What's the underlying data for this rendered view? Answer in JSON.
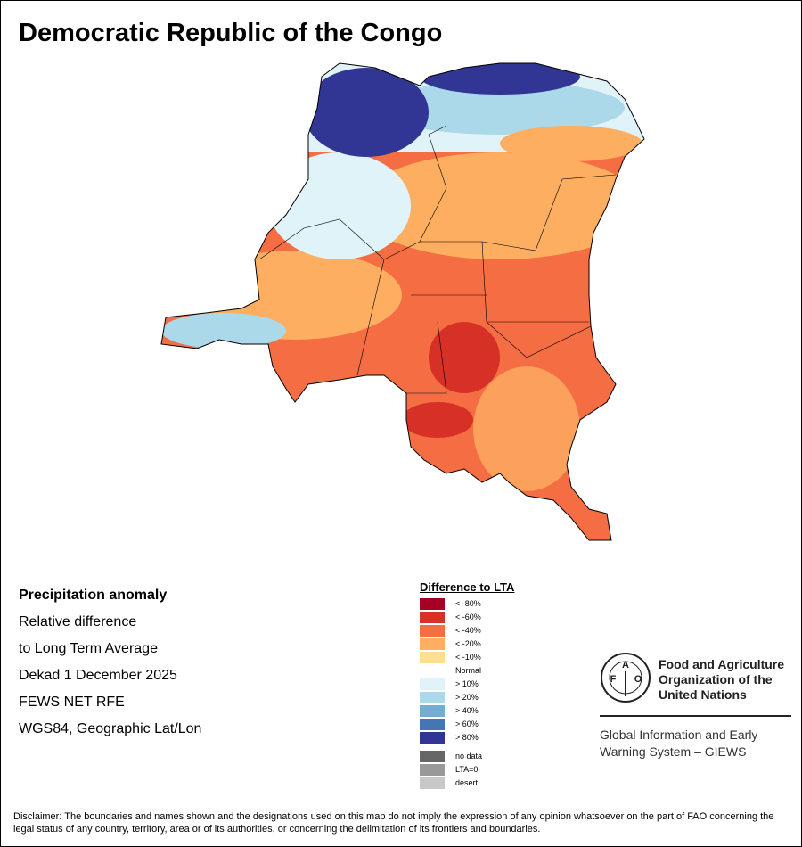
{
  "title": "Democratic Republic of the Congo",
  "info": {
    "line1": "Precipitation anomaly",
    "line2": "Relative difference",
    "line3": "to Long Term Average",
    "line4": "Dekad 1 December 2025",
    "line5": "FEWS NET RFE",
    "line6": "WGS84, Geographic Lat/Lon"
  },
  "legend": {
    "title": "Difference to LTA",
    "items": [
      {
        "label": "< -80%",
        "color": "#a50026"
      },
      {
        "label": "< -60%",
        "color": "#d73027"
      },
      {
        "label": "< -40%",
        "color": "#f46d43"
      },
      {
        "label": "< -20%",
        "color": "#fdae61"
      },
      {
        "label": "< -10%",
        "color": "#fee090"
      },
      {
        "label": "Normal",
        "color": "#ffffff"
      },
      {
        "label": "> 10%",
        "color": "#e0f3f8"
      },
      {
        "label": "> 20%",
        "color": "#abd9e9"
      },
      {
        "label": "> 40%",
        "color": "#74add1"
      },
      {
        "label": "> 60%",
        "color": "#4575b4"
      },
      {
        "label": "> 80%",
        "color": "#313695"
      }
    ],
    "extra": [
      {
        "label": "no data",
        "color": "#666666"
      },
      {
        "label": "LTA=0",
        "color": "#999999"
      },
      {
        "label": "desert",
        "color": "#c8c8c8"
      }
    ]
  },
  "logo": {
    "letters": "FAO",
    "motto": "FIAT PANIS",
    "name": "Food and Agriculture Organization of the United Nations",
    "system": "Global Information and Early Warning System – GIEWS"
  },
  "disclaimer": "Disclaimer: The boundaries and names shown and the designations used on this map do not imply the expression of any opinion whatsoever on the part of FAO concerning the legal status of any country, territory, area or of its authorities, or concerning the delimitation of its frontiers and boundaries."
}
